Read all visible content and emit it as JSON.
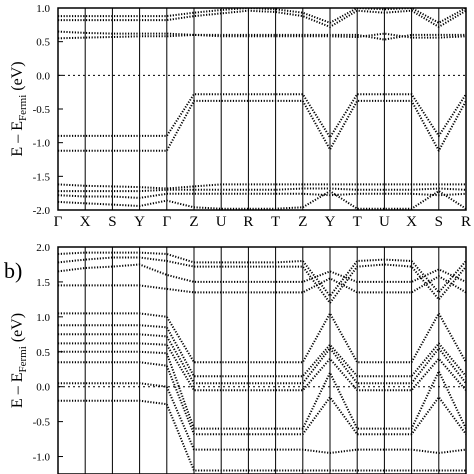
{
  "chart_data": [
    {
      "type": "line",
      "panel_label": "",
      "ylabel_main": "E – E",
      "ylabel_sub": "Fermi",
      "ylabel_unit": "(eV)",
      "ylim": [
        -2.0,
        1.0
      ],
      "yticks": [
        {
          "v": 1.0,
          "label": "1.0"
        },
        {
          "v": 0.5,
          "label": "0.5"
        },
        {
          "v": 0.0,
          "label": "0.0"
        },
        {
          "v": -0.5,
          "label": "-0.5"
        },
        {
          "v": -1.0,
          "label": "-1.0"
        },
        {
          "v": -1.5,
          "label": "-1.5"
        },
        {
          "v": -2.0,
          "label": "-2.0"
        }
      ],
      "kpoints": [
        {
          "k": 0,
          "label": "Γ"
        },
        {
          "k": 1,
          "label": "X"
        },
        {
          "k": 2,
          "label": "S"
        },
        {
          "k": 3,
          "label": "Y"
        },
        {
          "k": 4,
          "label": "Γ"
        },
        {
          "k": 5,
          "label": "Z"
        },
        {
          "k": 6,
          "label": "U"
        },
        {
          "k": 7,
          "label": "R"
        },
        {
          "k": 8,
          "label": "T"
        },
        {
          "k": 9,
          "label": "Z"
        },
        {
          "k": 10,
          "label": "Y"
        },
        {
          "k": 11,
          "label": "T"
        },
        {
          "k": 12,
          "label": "U"
        },
        {
          "k": 13,
          "label": "X"
        },
        {
          "k": 14,
          "label": "S"
        },
        {
          "k": 15,
          "label": "R"
        }
      ],
      "fermi_level": 0.0,
      "series": [
        {
          "x": [
            0,
            1,
            2,
            3,
            4,
            5,
            6,
            7,
            8,
            9,
            10,
            11,
            12,
            13,
            14,
            15
          ],
          "y": [
            0.88,
            0.88,
            0.88,
            0.88,
            0.88,
            0.93,
            0.97,
            1.0,
            0.98,
            0.93,
            0.78,
            1.0,
            0.98,
            1.0,
            0.78,
            1.0
          ]
        },
        {
          "x": [
            0,
            1,
            2,
            3,
            4,
            5,
            6,
            7,
            8,
            9,
            10,
            11,
            12,
            13,
            14,
            15
          ],
          "y": [
            0.82,
            0.82,
            0.82,
            0.82,
            0.82,
            0.88,
            0.92,
            0.96,
            0.94,
            0.88,
            0.72,
            0.96,
            0.93,
            0.96,
            0.72,
            0.96
          ]
        },
        {
          "x": [
            0,
            1,
            2,
            3,
            4,
            5,
            6,
            7,
            8,
            9,
            10,
            11,
            12,
            13,
            14,
            15
          ],
          "y": [
            0.65,
            0.63,
            0.62,
            0.62,
            0.62,
            0.6,
            0.58,
            0.58,
            0.58,
            0.58,
            0.58,
            0.57,
            0.62,
            0.56,
            0.56,
            0.58
          ]
        },
        {
          "x": [
            0,
            1,
            2,
            3,
            4,
            5,
            6,
            7,
            8,
            9,
            10,
            11,
            12,
            13,
            14,
            15
          ],
          "y": [
            0.55,
            0.56,
            0.57,
            0.58,
            0.58,
            0.6,
            0.6,
            0.6,
            0.6,
            0.6,
            0.6,
            0.6,
            0.53,
            0.6,
            0.6,
            0.6
          ]
        },
        {
          "x": [
            0,
            1,
            2,
            3,
            4,
            5,
            6,
            7,
            8,
            9,
            10,
            11,
            12,
            13,
            14,
            15
          ],
          "y": [
            -0.9,
            -0.9,
            -0.9,
            -0.9,
            -0.9,
            -0.28,
            -0.28,
            -0.28,
            -0.28,
            -0.28,
            -0.92,
            -0.28,
            -0.28,
            -0.28,
            -0.9,
            -0.28
          ]
        },
        {
          "x": [
            0,
            1,
            2,
            3,
            4,
            5,
            6,
            7,
            8,
            9,
            10,
            11,
            12,
            13,
            14,
            15
          ],
          "y": [
            -1.12,
            -1.12,
            -1.12,
            -1.12,
            -1.12,
            -0.38,
            -0.38,
            -0.38,
            -0.38,
            -0.38,
            -1.1,
            -0.38,
            -0.38,
            -0.38,
            -1.12,
            -0.38
          ]
        },
        {
          "x": [
            0,
            1,
            2,
            3,
            4,
            5,
            6,
            7,
            8,
            9,
            10,
            11,
            12,
            13,
            14,
            15
          ],
          "y": [
            -1.62,
            -1.64,
            -1.65,
            -1.66,
            -1.68,
            -1.65,
            -1.62,
            -1.62,
            -1.62,
            -1.62,
            -1.62,
            -1.62,
            -1.62,
            -1.62,
            -1.62,
            -1.62
          ]
        },
        {
          "x": [
            0,
            1,
            2,
            3,
            4,
            5,
            6,
            7,
            8,
            9,
            10,
            11,
            12,
            13,
            14,
            15
          ],
          "y": [
            -1.72,
            -1.72,
            -1.72,
            -1.72,
            -1.7,
            -1.7,
            -1.7,
            -1.7,
            -1.7,
            -1.68,
            -1.68,
            -1.7,
            -1.7,
            -1.7,
            -1.68,
            -1.7
          ]
        },
        {
          "x": [
            0,
            1,
            2,
            3,
            4,
            5,
            6,
            7,
            8,
            9,
            10,
            11,
            12,
            13,
            14,
            15
          ],
          "y": [
            -1.78,
            -1.8,
            -1.8,
            -1.82,
            -1.76,
            -1.76,
            -1.76,
            -1.76,
            -1.76,
            -1.76,
            -1.78,
            -1.76,
            -1.76,
            -1.76,
            -1.78,
            -1.76
          ]
        },
        {
          "x": [
            0,
            1,
            2,
            3,
            4,
            5,
            6,
            7,
            8,
            9,
            10,
            11,
            12,
            13,
            14,
            15
          ],
          "y": [
            -1.88,
            -1.9,
            -1.92,
            -1.94,
            -1.86,
            -1.96,
            -1.98,
            -1.98,
            -1.98,
            -1.96,
            -1.72,
            -1.98,
            -1.98,
            -1.98,
            -1.72,
            -1.98
          ]
        }
      ]
    },
    {
      "type": "line",
      "panel_label": "b)",
      "ylabel_main": "E – E",
      "ylabel_sub": "Fermi",
      "ylabel_unit": "(eV)",
      "ylim": [
        -1.25,
        2.0
      ],
      "yticks": [
        {
          "v": 2.0,
          "label": "2.0"
        },
        {
          "v": 1.5,
          "label": "1.5"
        },
        {
          "v": 1.0,
          "label": "1.0"
        },
        {
          "v": 0.5,
          "label": "0.5"
        },
        {
          "v": 0.0,
          "label": "0.0"
        },
        {
          "v": -0.5,
          "label": "-0.5"
        },
        {
          "v": -1.0,
          "label": "-1.0"
        }
      ],
      "kpoints": [
        {
          "k": 0,
          "label": ""
        },
        {
          "k": 1,
          "label": ""
        },
        {
          "k": 2,
          "label": ""
        },
        {
          "k": 3,
          "label": ""
        },
        {
          "k": 4,
          "label": ""
        },
        {
          "k": 5,
          "label": ""
        },
        {
          "k": 6,
          "label": ""
        },
        {
          "k": 7,
          "label": ""
        },
        {
          "k": 8,
          "label": ""
        },
        {
          "k": 9,
          "label": ""
        },
        {
          "k": 10,
          "label": ""
        },
        {
          "k": 11,
          "label": ""
        },
        {
          "k": 12,
          "label": ""
        },
        {
          "k": 13,
          "label": ""
        },
        {
          "k": 14,
          "label": ""
        },
        {
          "k": 15,
          "label": ""
        }
      ],
      "fermi_level": 0.0,
      "series": [
        {
          "x": [
            0,
            1,
            2,
            3,
            4,
            5,
            6,
            7,
            8,
            9,
            10,
            11,
            12,
            13,
            14,
            15
          ],
          "y": [
            1.9,
            1.92,
            1.92,
            1.92,
            1.9,
            1.78,
            1.78,
            1.78,
            1.78,
            1.8,
            1.3,
            1.8,
            1.82,
            1.8,
            1.35,
            1.8
          ]
        },
        {
          "x": [
            0,
            1,
            2,
            3,
            4,
            5,
            6,
            7,
            8,
            9,
            10,
            11,
            12,
            13,
            14,
            15
          ],
          "y": [
            1.78,
            1.82,
            1.85,
            1.85,
            1.8,
            1.72,
            1.72,
            1.72,
            1.72,
            1.72,
            1.2,
            1.72,
            1.75,
            1.72,
            1.25,
            1.72
          ]
        },
        {
          "x": [
            0,
            1,
            2,
            3,
            4,
            5,
            6,
            7,
            8,
            9,
            10,
            11,
            12,
            13,
            14,
            15
          ],
          "y": [
            1.65,
            1.7,
            1.72,
            1.75,
            1.6,
            1.5,
            1.5,
            1.5,
            1.5,
            1.5,
            1.65,
            1.5,
            1.5,
            1.5,
            1.68,
            1.5
          ]
        },
        {
          "x": [
            0,
            1,
            2,
            3,
            4,
            5,
            6,
            7,
            8,
            9,
            10,
            11,
            12,
            13,
            14,
            15
          ],
          "y": [
            1.45,
            1.45,
            1.45,
            1.45,
            1.4,
            1.35,
            1.35,
            1.35,
            1.35,
            1.35,
            1.55,
            1.35,
            1.35,
            1.35,
            1.58,
            1.35
          ]
        },
        {
          "x": [
            0,
            1,
            2,
            3,
            4,
            5,
            6,
            7,
            8,
            9,
            10,
            11,
            12,
            13,
            14,
            15
          ],
          "y": [
            1.05,
            1.05,
            1.05,
            1.05,
            1.0,
            0.35,
            0.35,
            0.35,
            0.35,
            0.35,
            1.05,
            0.35,
            0.35,
            0.35,
            1.05,
            0.35
          ]
        },
        {
          "x": [
            0,
            1,
            2,
            3,
            4,
            5,
            6,
            7,
            8,
            9,
            10,
            11,
            12,
            13,
            14,
            15
          ],
          "y": [
            0.88,
            0.88,
            0.88,
            0.88,
            0.85,
            0.15,
            0.15,
            0.15,
            0.15,
            0.15,
            0.6,
            0.15,
            0.15,
            0.15,
            0.62,
            0.15
          ]
        },
        {
          "x": [
            0,
            1,
            2,
            3,
            4,
            5,
            6,
            7,
            8,
            9,
            10,
            11,
            12,
            13,
            14,
            15
          ],
          "y": [
            0.75,
            0.75,
            0.75,
            0.75,
            0.72,
            0.05,
            0.05,
            0.05,
            0.05,
            0.05,
            0.55,
            0.05,
            0.05,
            0.05,
            0.55,
            0.05
          ]
        },
        {
          "x": [
            0,
            1,
            2,
            3,
            4,
            5,
            6,
            7,
            8,
            9,
            10,
            11,
            12,
            13,
            14,
            15
          ],
          "y": [
            0.62,
            0.62,
            0.62,
            0.62,
            0.6,
            -0.05,
            -0.05,
            -0.05,
            -0.05,
            -0.05,
            0.4,
            -0.05,
            -0.05,
            -0.05,
            0.4,
            -0.05
          ]
        },
        {
          "x": [
            0,
            1,
            2,
            3,
            4,
            5,
            6,
            7,
            8,
            9,
            10,
            11,
            12,
            13,
            14,
            15
          ],
          "y": [
            0.5,
            0.5,
            0.5,
            0.5,
            0.48,
            -0.6,
            -0.6,
            -0.6,
            -0.6,
            -0.6,
            0.2,
            -0.6,
            -0.6,
            -0.6,
            0.22,
            -0.6
          ]
        },
        {
          "x": [
            0,
            1,
            2,
            3,
            4,
            5,
            6,
            7,
            8,
            9,
            10,
            11,
            12,
            13,
            14,
            15
          ],
          "y": [
            0.35,
            0.35,
            0.35,
            0.35,
            0.3,
            -0.68,
            -0.68,
            -0.68,
            -0.68,
            -0.68,
            -0.15,
            -0.68,
            -0.68,
            -0.68,
            -0.15,
            -0.68
          ]
        },
        {
          "x": [
            0,
            1,
            2,
            3,
            4,
            5,
            6,
            7,
            8,
            9,
            10,
            11,
            12,
            13,
            14,
            15
          ],
          "y": [
            0.05,
            0.05,
            0.05,
            0.05,
            0.0,
            -0.9,
            -0.9,
            -0.9,
            -0.9,
            -0.9,
            -0.95,
            -0.9,
            -0.9,
            -0.9,
            -0.95,
            -0.9
          ]
        },
        {
          "x": [
            0,
            1,
            2,
            3,
            4,
            5,
            6,
            7,
            8,
            9,
            10,
            11,
            12,
            13,
            14,
            15
          ],
          "y": [
            -0.2,
            -0.2,
            -0.2,
            -0.2,
            -0.25,
            -1.2,
            -1.2,
            -1.2,
            -1.2,
            -1.2,
            -1.2,
            -1.2,
            -1.2,
            -1.2,
            -1.2,
            -1.2
          ]
        }
      ]
    }
  ]
}
